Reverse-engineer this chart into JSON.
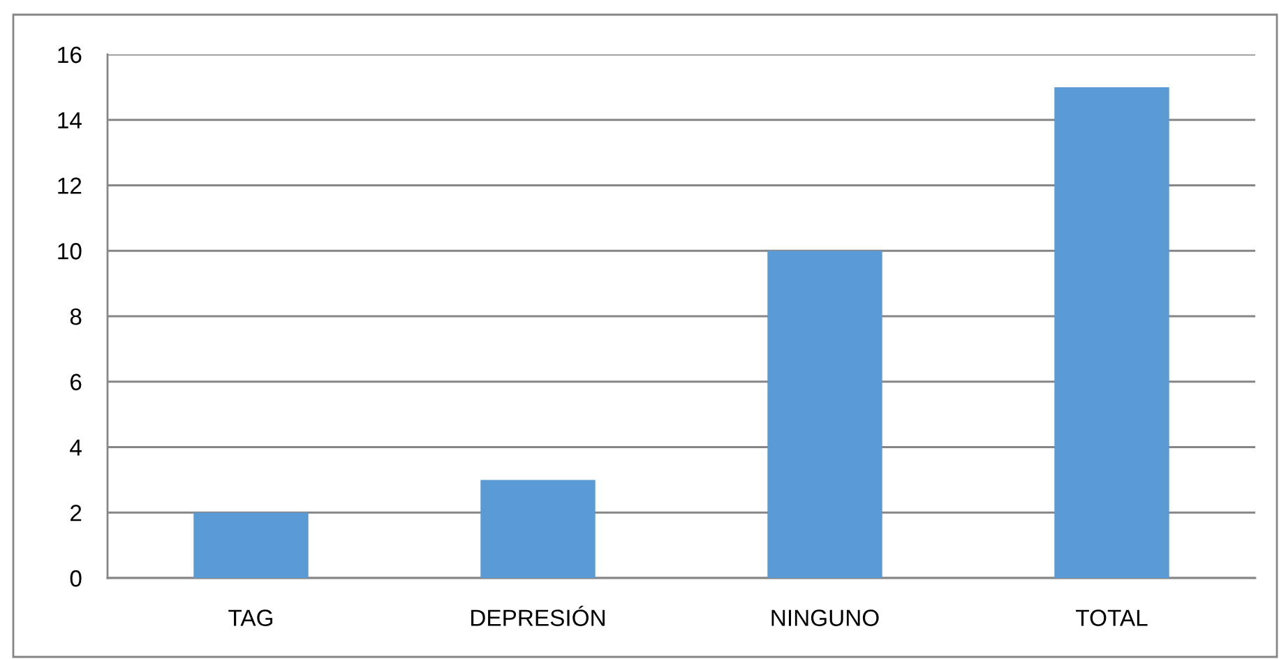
{
  "chart_data": {
    "type": "bar",
    "categories": [
      "TAG",
      "DEPRESIÓN",
      "NINGUNO",
      "TOTAL"
    ],
    "values": [
      2,
      3,
      10,
      15
    ],
    "color": "#5b9bd5",
    "ylim": [
      0,
      16
    ],
    "yticks": [
      0,
      2,
      4,
      6,
      8,
      10,
      12,
      14,
      16
    ],
    "grid": "y"
  }
}
